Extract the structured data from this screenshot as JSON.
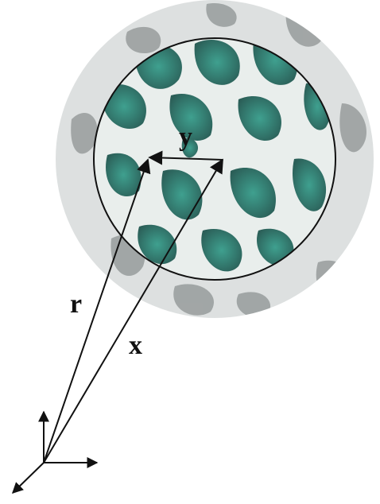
{
  "labels": {
    "r": "r",
    "x": "x",
    "y": "y"
  },
  "colors": {
    "outer_halo": "#cfd3d3",
    "outer_patch": "#8d9393",
    "inner_background": "#e9eeec",
    "inner_patch": "#2f6f66",
    "inner_patch_light": "#3fa08f",
    "line": "#111111"
  }
}
